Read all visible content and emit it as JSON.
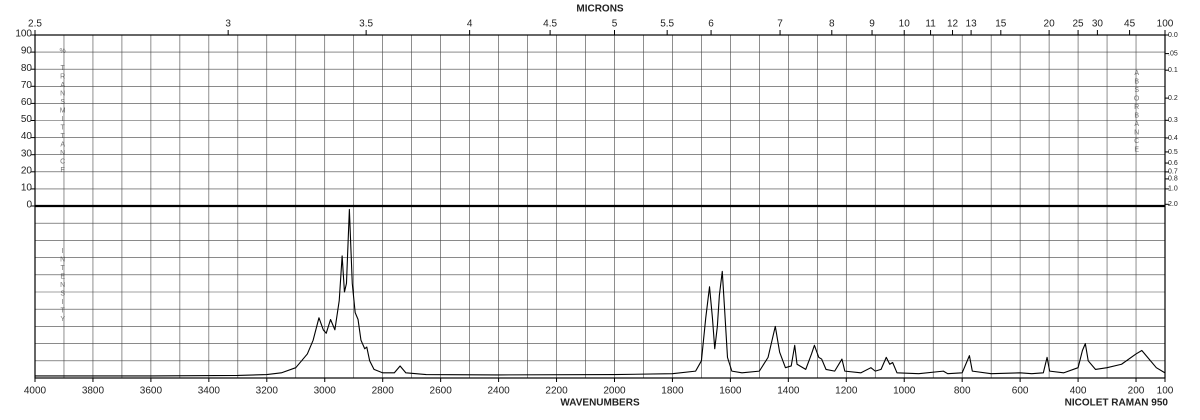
{
  "chart_data": {
    "type": "line",
    "x2_label": "MICRONS",
    "x_label": "WAVENUMBERS",
    "footer": "NICOLET RAMAN 950",
    "y_label": "% TRANSMITTANCE",
    "intensity_label": "INTENSITY",
    "y2_label": "ABSORBANCE",
    "xlim": [
      4000,
      100
    ],
    "xticks": [
      4000,
      3800,
      3600,
      3400,
      3200,
      3000,
      2800,
      2600,
      2400,
      2200,
      2000,
      1800,
      1600,
      1400,
      1200,
      1000,
      800,
      600,
      400,
      200,
      100
    ],
    "x2ticks": [
      2.5,
      3,
      3.5,
      4,
      4.5,
      5,
      5.5,
      6,
      7,
      8,
      9,
      10,
      11,
      12,
      13,
      15,
      20,
      25,
      30,
      45,
      100
    ],
    "ylim": [
      0,
      100
    ],
    "yticks": [
      0,
      10,
      20,
      30,
      40,
      50,
      60,
      70,
      80,
      90,
      100
    ],
    "y2ticks": [
      {
        "value": 0,
        "label": "0.0"
      },
      {
        "value": 0.05,
        "label": ".05"
      },
      0.1,
      0.2,
      0.3,
      0.4,
      0.5,
      0.6,
      0.7,
      0.8,
      {
        "value": 1,
        "label": "1.0"
      },
      {
        "value": 2,
        "label": "2.0"
      }
    ],
    "intensity_lim": [
      0,
      100
    ],
    "grid": true,
    "color": "#000000",
    "x": [
      4000,
      3600,
      3300,
      3200,
      3150,
      3100,
      3060,
      3040,
      3020,
      3005,
      2995,
      2980,
      2965,
      2950,
      2940,
      2932,
      2925,
      2915,
      2905,
      2895,
      2885,
      2875,
      2862,
      2855,
      2845,
      2830,
      2800,
      2760,
      2740,
      2720,
      2650,
      2400,
      2000,
      1800,
      1720,
      1700,
      1685,
      1672,
      1662,
      1654,
      1645,
      1638,
      1628,
      1620,
      1610,
      1595,
      1560,
      1500,
      1470,
      1445,
      1430,
      1410,
      1390,
      1378,
      1370,
      1340,
      1320,
      1310,
      1295,
      1285,
      1270,
      1240,
      1215,
      1205,
      1150,
      1115,
      1100,
      1080,
      1062,
      1050,
      1040,
      1025,
      950,
      865,
      850,
      800,
      775,
      765,
      700,
      600,
      560,
      520,
      507,
      498,
      450,
      400,
      385,
      375,
      365,
      340,
      300,
      250,
      200,
      180,
      160,
      130,
      100
    ],
    "values": [
      1.2,
      1.2,
      1.5,
      2,
      3,
      6,
      14,
      22,
      35,
      28,
      26,
      34,
      28,
      45,
      71,
      50,
      55,
      98,
      55,
      38,
      34,
      22,
      17,
      18,
      10,
      5,
      3,
      3,
      7,
      3,
      2,
      1.8,
      2,
      2.5,
      4,
      10,
      35,
      53,
      35,
      17,
      30,
      48,
      62,
      40,
      12,
      4,
      3,
      4,
      12,
      30,
      15,
      6,
      7,
      19,
      8,
      5,
      14,
      19,
      12,
      11,
      5,
      4,
      11,
      4,
      3,
      6,
      4,
      5,
      12,
      8,
      9,
      3,
      2.5,
      4,
      2.5,
      3,
      13,
      4,
      2.5,
      3,
      2.5,
      3,
      12,
      4,
      3,
      6,
      16,
      20,
      10,
      5,
      6,
      8,
      14,
      16,
      12,
      6,
      3
    ]
  }
}
